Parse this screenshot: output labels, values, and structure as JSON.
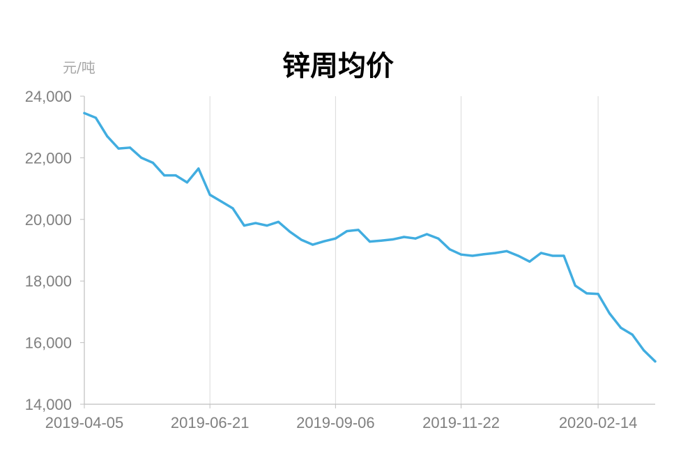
{
  "chart_data": {
    "type": "line",
    "title": "锌周均价",
    "ylabel": "元/吨",
    "xlabel": "",
    "ylim": [
      14000,
      24000
    ],
    "yticks": [
      "14,000",
      "16,000",
      "18,000",
      "20,000",
      "22,000",
      "24,000"
    ],
    "xticks": [
      "2019-04-05",
      "2019-06-21",
      "2019-09-06",
      "2019-11-22",
      "2020-02-14"
    ],
    "grid": "vertical",
    "legend": "none",
    "line_color": "#41ade0",
    "x": [
      "2019-04-05",
      "2019-04-12",
      "2019-04-19",
      "2019-04-26",
      "2019-05-03",
      "2019-05-10",
      "2019-05-17",
      "2019-05-24",
      "2019-05-31",
      "2019-06-07",
      "2019-06-14",
      "2019-06-21",
      "2019-06-28",
      "2019-07-05",
      "2019-07-12",
      "2019-07-19",
      "2019-07-26",
      "2019-08-02",
      "2019-08-09",
      "2019-08-16",
      "2019-08-23",
      "2019-08-30",
      "2019-09-06",
      "2019-09-13",
      "2019-09-20",
      "2019-09-27",
      "2019-10-04",
      "2019-10-11",
      "2019-10-18",
      "2019-10-25",
      "2019-11-01",
      "2019-11-08",
      "2019-11-15",
      "2019-11-22",
      "2019-11-29",
      "2019-12-06",
      "2019-12-13",
      "2019-12-20",
      "2019-12-27",
      "2020-01-03",
      "2020-01-10",
      "2020-01-17",
      "2020-01-24",
      "2020-01-31",
      "2020-02-07",
      "2020-02-14",
      "2020-02-21",
      "2020-02-28",
      "2020-03-06",
      "2020-03-13",
      "2020-03-20"
    ],
    "series": [
      {
        "values": [
          23450,
          23300,
          22700,
          22300,
          22330,
          22000,
          21840,
          21430,
          21430,
          21200,
          21650,
          20800,
          20580,
          20360,
          19800,
          19880,
          19800,
          19920,
          19600,
          19340,
          19180,
          19290,
          19380,
          19620,
          19660,
          19280,
          19310,
          19350,
          19430,
          19380,
          19520,
          19380,
          19030,
          18860,
          18820,
          18870,
          18910,
          18970,
          18820,
          18630,
          18910,
          18820,
          18820,
          17850,
          17600,
          17580,
          16950,
          16480,
          16260,
          15750,
          15390
        ]
      }
    ]
  }
}
